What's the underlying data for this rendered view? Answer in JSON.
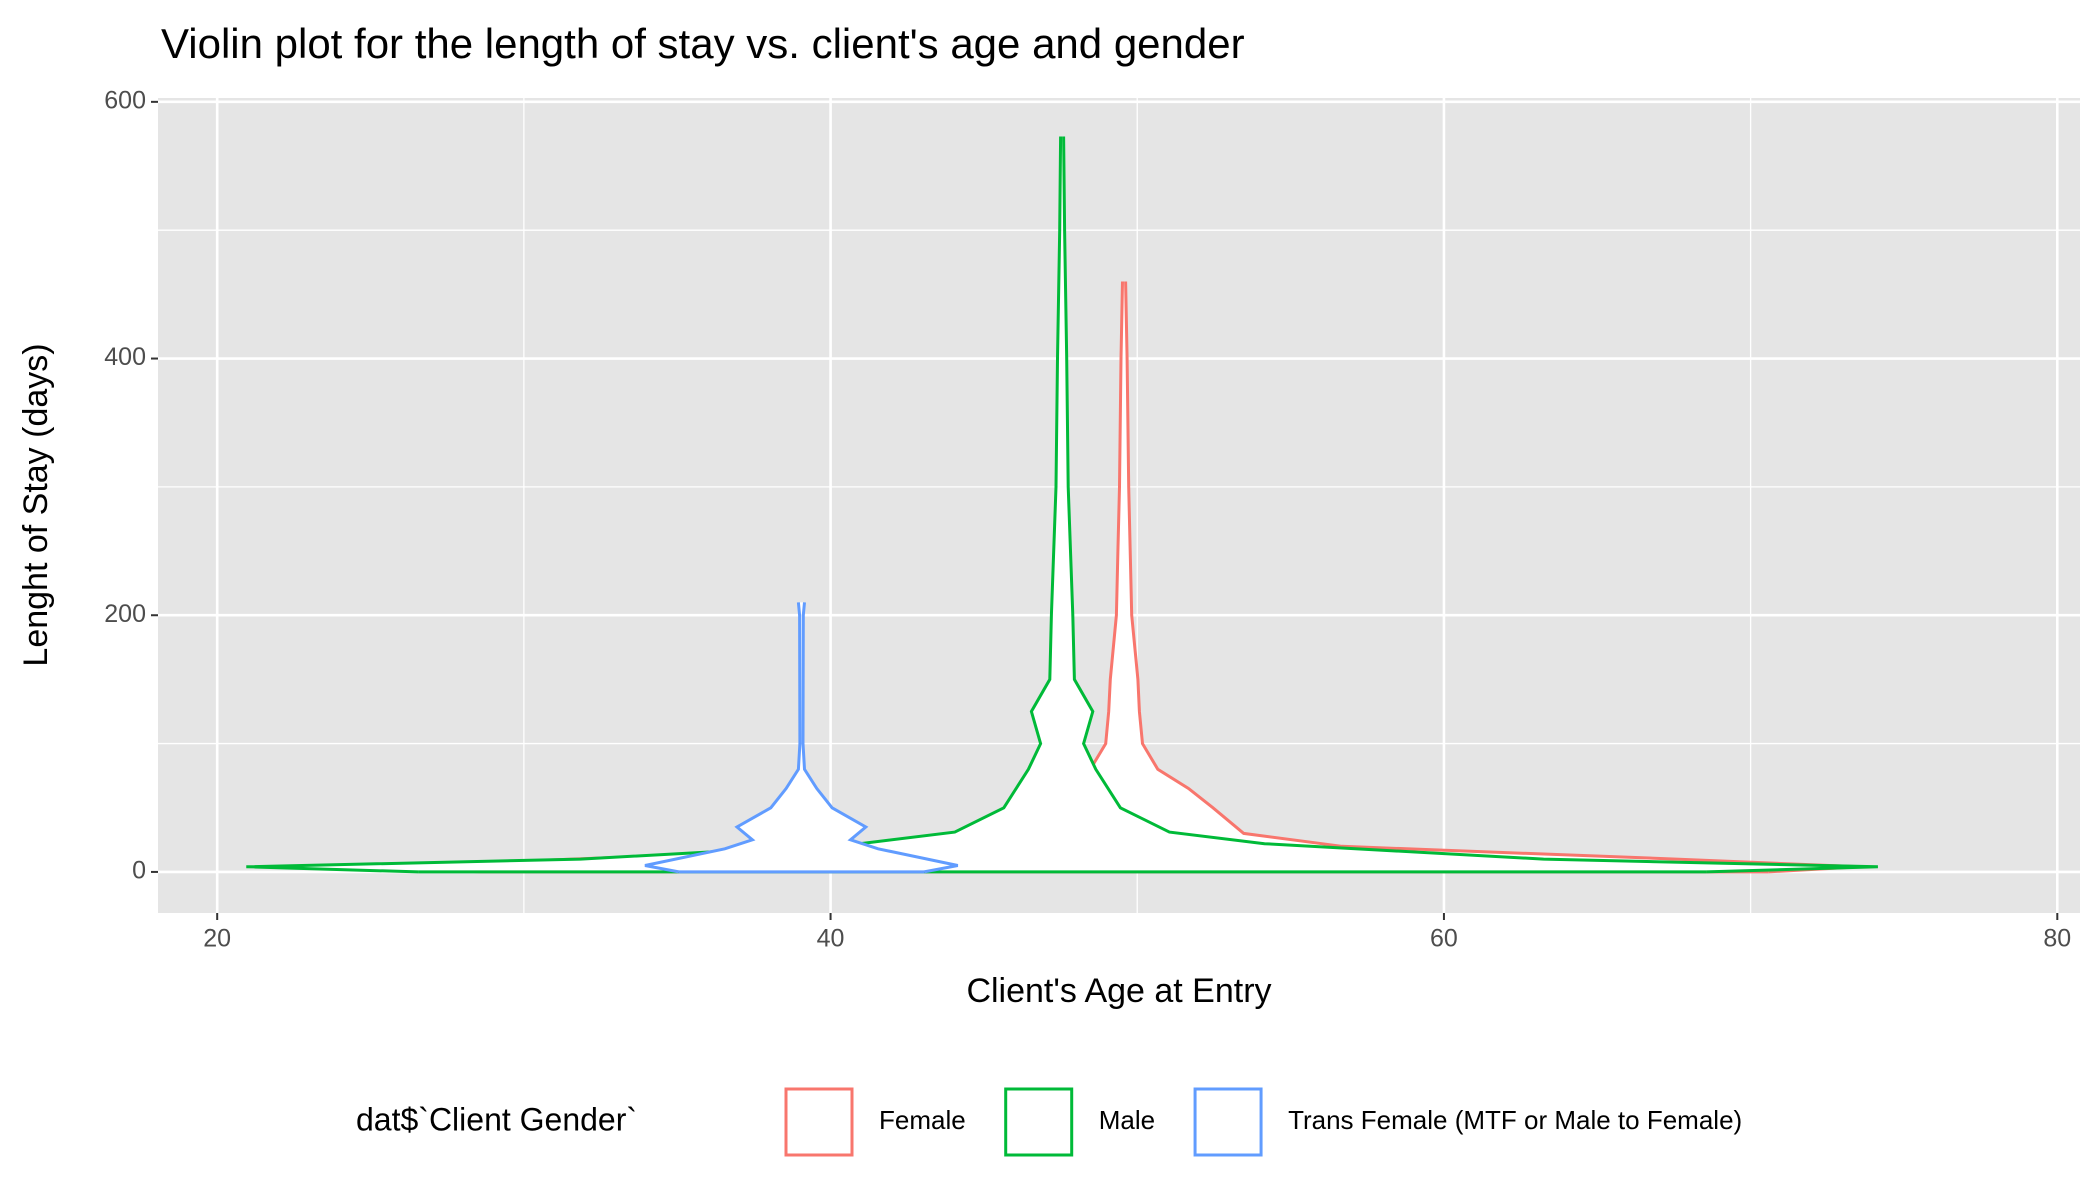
{
  "chart_data": {
    "type": "violin",
    "title": "Violin plot for the length of stay vs. client's age and gender",
    "x_label": "Client's Age at Entry",
    "y_label": "Lenght of Stay (days)",
    "legend_title": "dat$`Client Gender`",
    "legend_position": "bottom",
    "grid": true,
    "xlim": [
      18.07,
      80.74
    ],
    "xticks": [
      20,
      40,
      60,
      80
    ],
    "x_minor_grid": [
      30,
      50,
      70
    ],
    "ylim": [
      -32,
      603
    ],
    "yticks": [
      0,
      200,
      400,
      600
    ],
    "y_minor_grid": [
      100,
      300,
      500
    ],
    "series": [
      {
        "name": "Female",
        "color": "#f8766d",
        "center": 49.57,
        "y": [
          0,
          4,
          10,
          20,
          30,
          50,
          65,
          80,
          100,
          125,
          150,
          200,
          250,
          300,
          400,
          460
        ],
        "half_width": [
          21,
          24,
          18,
          7.1,
          3.9,
          2.9,
          2.1,
          1.1,
          0.6,
          0.5,
          0.45,
          0.25,
          0.2,
          0.15,
          0.1,
          0.05
        ]
      },
      {
        "name": "Male",
        "color": "#00ba38",
        "center": 47.55,
        "y": [
          0,
          4,
          10,
          22,
          31,
          50,
          80,
          100,
          125,
          150,
          200,
          300,
          400,
          500,
          573
        ],
        "half_width": [
          21,
          26.6,
          15.7,
          6.6,
          3.5,
          1.9,
          1.1,
          0.7,
          1.0,
          0.4,
          0.35,
          0.2,
          0.15,
          0.08,
          0.05
        ]
      },
      {
        "name": "Trans Female (MTF or Male to Female)",
        "color": "#619cff",
        "center": 39.05,
        "y": [
          0,
          5,
          18,
          25,
          35,
          50,
          65,
          80,
          100,
          200,
          210
        ],
        "half_width": [
          4.0,
          5.1,
          2.5,
          1.6,
          2.1,
          1.0,
          0.5,
          0.1,
          0.05,
          0.06,
          0.1
        ]
      }
    ]
  }
}
